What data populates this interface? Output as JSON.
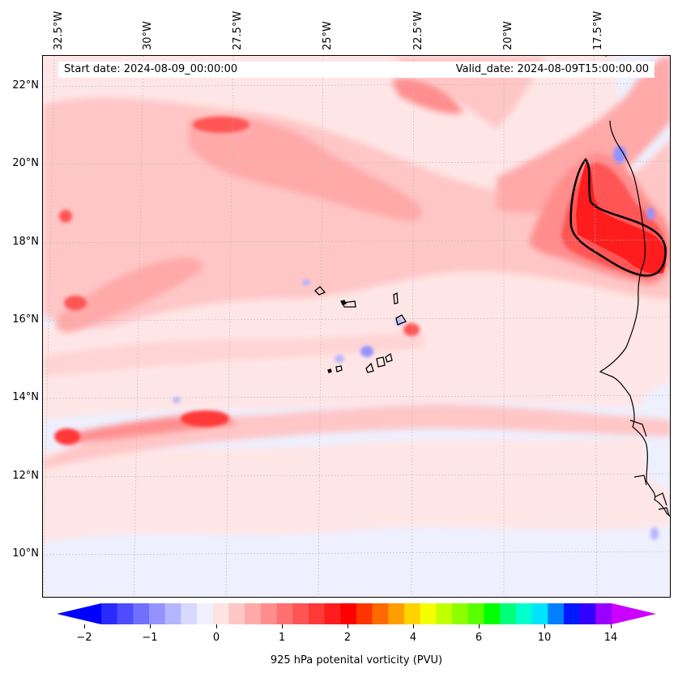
{
  "header": {
    "start_date": "Start date: 2024-08-09_00:00:00",
    "valid_date": "Valid_date: 2024-08-09T15:00:00.00"
  },
  "axes": {
    "top_lon_ticks": [
      "32.5°W",
      "30°W",
      "27.5°W",
      "25°W",
      "22.5°W",
      "20°W",
      "17.5°W"
    ],
    "left_lat_ticks": [
      "22°N",
      "20°N",
      "18°N",
      "16°N",
      "14°N",
      "12°N",
      "10°N"
    ]
  },
  "colorbar": {
    "label": "925 hPa potenital vorticity (PVU)",
    "tick_labels": [
      "−2",
      "−1",
      "0",
      "1",
      "2",
      "4",
      "6",
      "10",
      "14"
    ],
    "colors": [
      "#0000ff",
      "#2a2aff",
      "#4d4dff",
      "#7070ff",
      "#9393ff",
      "#b5b5ff",
      "#d8d8ff",
      "#f0f0ff",
      "#ffe2e2",
      "#ffc6c6",
      "#ffa9a9",
      "#ff8d8d",
      "#ff7070",
      "#ff5454",
      "#ff3838",
      "#ff1c1c",
      "#ff0000",
      "#ff3500",
      "#ff6a00",
      "#ff9e00",
      "#ffd300",
      "#f6ff00",
      "#c2ff00",
      "#8dff00",
      "#59ff00",
      "#00ff00",
      "#00ff7a",
      "#00ffcc",
      "#00e5ff",
      "#0080ff",
      "#0019ff",
      "#3300ff",
      "#9900ff",
      "#cc00ff"
    ]
  },
  "map": {
    "colors": {
      "ocean_base": "#eef0ff",
      "light_red": "#ffe2e2",
      "pink": "#ffc6c6",
      "medium": "#ffa9a9",
      "strong": "#ff7070",
      "very_strong": "#ff3838",
      "max_red": "#ff0000",
      "blue": "#b5b5ff",
      "deep_blue": "#9393ff"
    },
    "features": [
      "cape-verde-islands",
      "west-africa-coastline",
      "high-pv-anomaly-mauritania"
    ]
  }
}
